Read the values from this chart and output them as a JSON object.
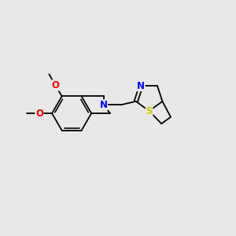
{
  "bg_color": "#e8e8e8",
  "bond_color": "#000000",
  "atom_colors": {
    "N": "#0000ff",
    "O": "#ff0000",
    "S": "#cccc00"
  },
  "font_size_atoms": 8.5,
  "lw": 1.3
}
